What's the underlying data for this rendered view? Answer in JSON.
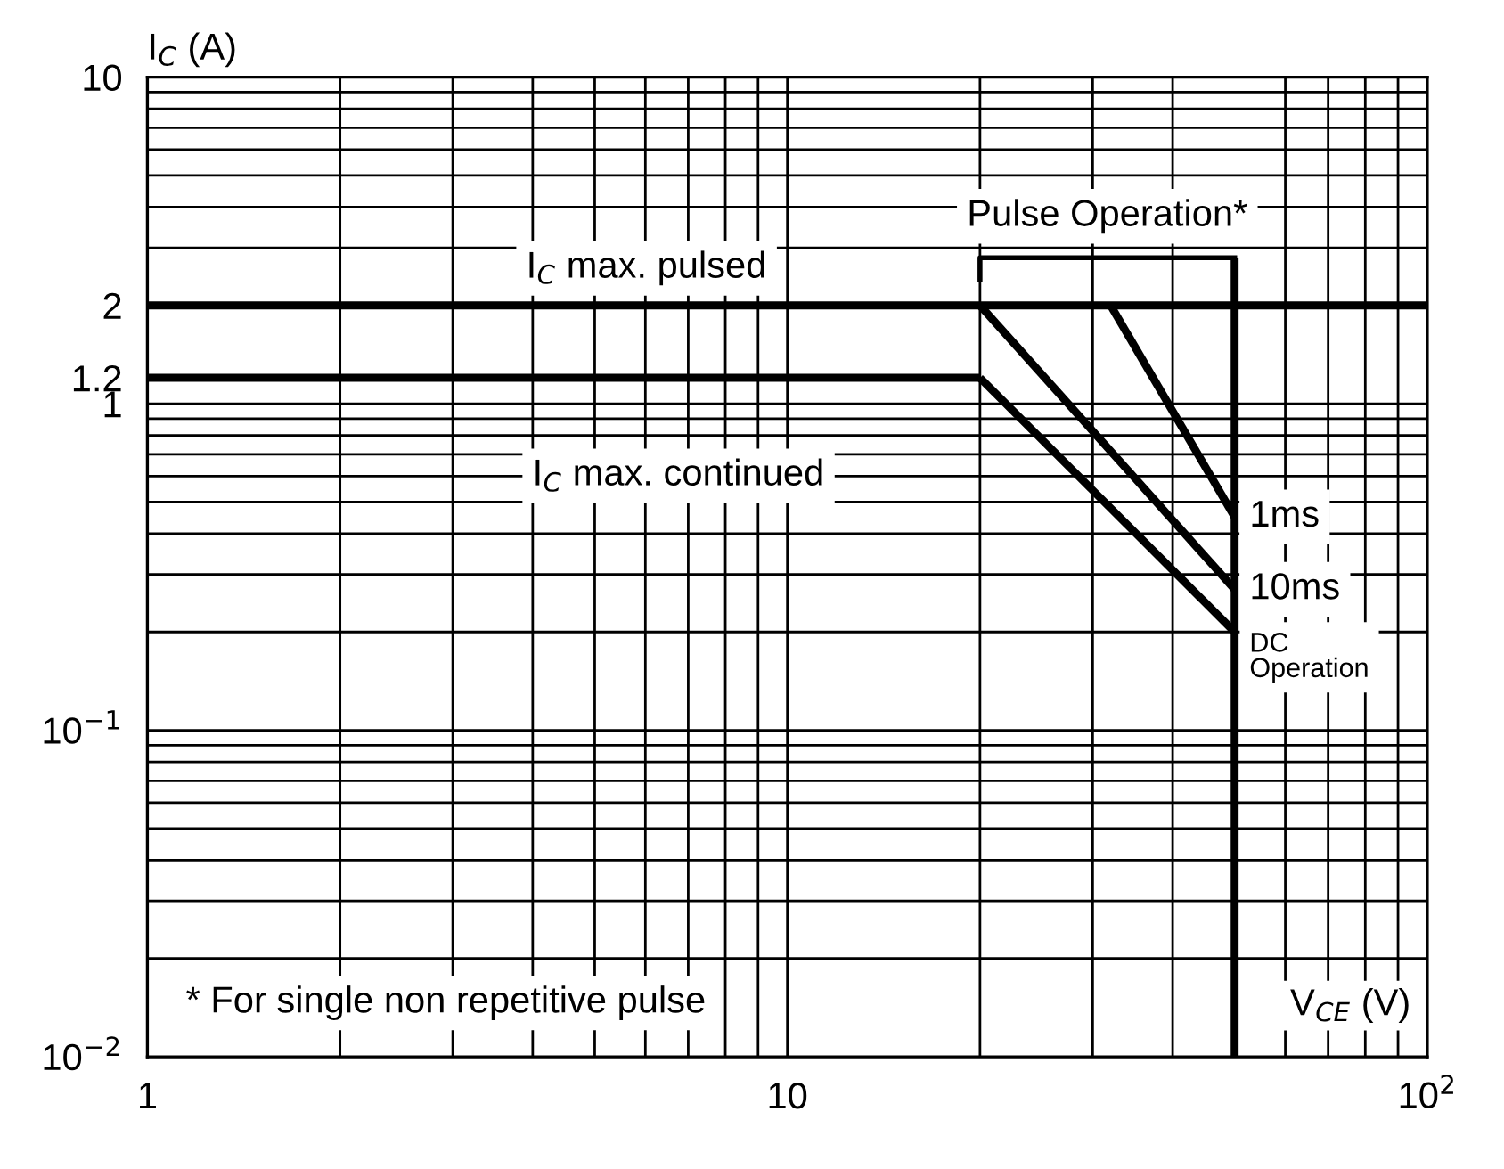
{
  "chart_data": {
    "type": "line",
    "xlabel": "V$_{CE}$ (V)",
    "ylabel": "I$_{C}$ (A)",
    "log": "xy",
    "xlim": [
      1,
      100
    ],
    "ylim": [
      0.01,
      10
    ],
    "xticks": [
      1,
      10,
      {
        "value": 100,
        "label": "10$^{2}$"
      }
    ],
    "yticks": [
      {
        "value": 0.01,
        "label": "10$^{−2}$"
      },
      {
        "value": 0.1,
        "label": "10$^{−1}$"
      },
      1,
      1.2,
      2,
      10
    ],
    "grid": true,
    "legend": false,
    "marker": "none",
    "line_style": "solid",
    "series": [
      {
        "color": "#000000",
        "x": [
          1,
          100
        ],
        "values": [
          2,
          2
        ]
      },
      {
        "color": "#000000",
        "x": [
          1,
          20
        ],
        "values": [
          1.2,
          1.2
        ]
      },
      {
        "color": "#000000",
        "x": [
          50,
          50
        ],
        "values": [
          0.01,
          2.8
        ]
      },
      {
        "name": "DC\nOperation",
        "color": "#000000",
        "x": [
          20,
          50
        ],
        "values": [
          1.2,
          0.2
        ]
      },
      {
        "name": "10ms",
        "color": "#000000",
        "x": [
          20,
          50
        ],
        "values": [
          2,
          0.27
        ]
      },
      {
        "name": "1ms",
        "color": "#000000",
        "x": [
          32,
          50
        ],
        "values": [
          2,
          0.45
        ]
      }
    ],
    "annotations": [
      "I$_{C}$ max. pulsed",
      "I$_{C}$ max. continued",
      "Pulse Operation*",
      "* For single non repetitive pulse"
    ]
  }
}
